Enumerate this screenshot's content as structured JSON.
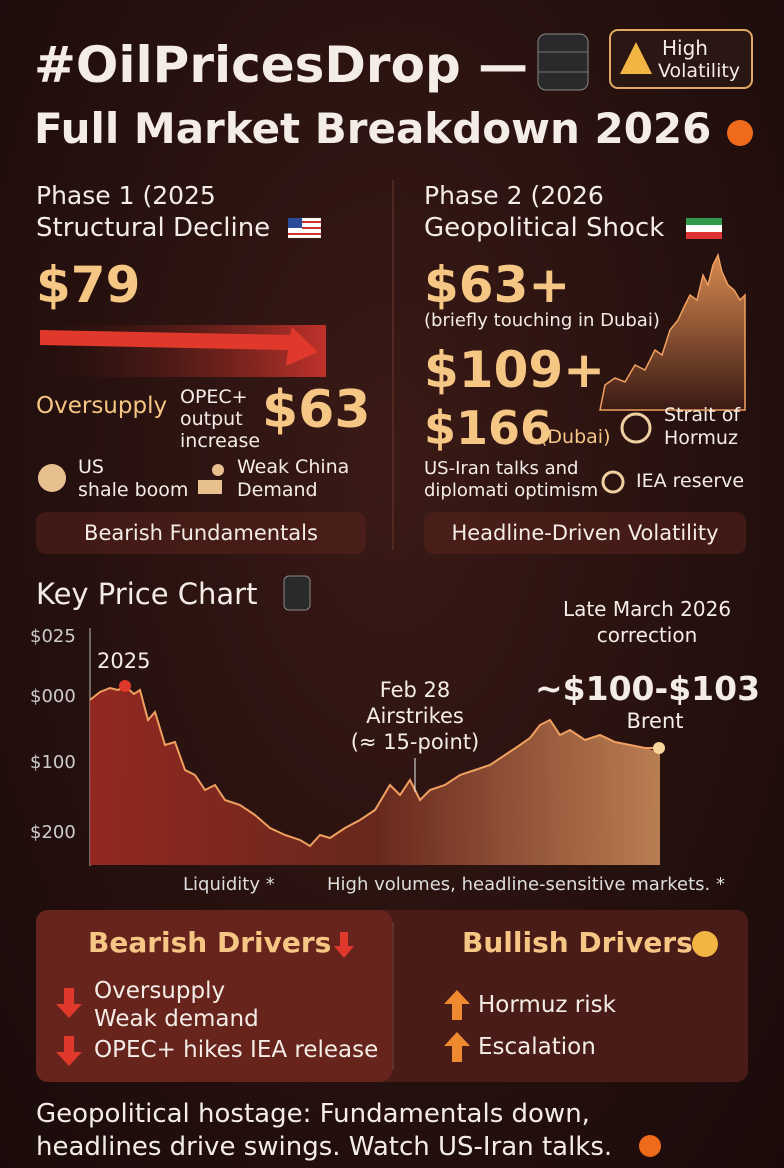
{
  "header": {
    "title": "#OilPricesDrop —",
    "badge": [
      "High",
      "Volatility"
    ],
    "subtitle": "Full Market Breakdown 2026"
  },
  "phase1": {
    "title": [
      "Phase 1 (2025",
      "Structural Decline"
    ],
    "price_start": "$79",
    "oversupply": "Oversupply",
    "opec": [
      "OPEC+",
      "output",
      "increase"
    ],
    "price_end": "$63",
    "factors": [
      [
        "US",
        "shale boom"
      ],
      [
        "Weak China",
        "Demand"
      ]
    ],
    "summary": "Bearish Fundamentals"
  },
  "phase2": {
    "title": [
      "Phase 2 (2026",
      "Geopolitical Shock"
    ],
    "price_1": "$63+",
    "note": "(briefly touching in Dubai)",
    "price_2": "$109+",
    "price_3": "$166",
    "price_3_note": "(Dubai)",
    "hormuz": [
      "Strait of",
      "Hormuz"
    ],
    "talks": [
      "US-Iran talks and",
      "diplomati optimism"
    ],
    "iea": "IEA reserve",
    "summary": "Headline-Driven Volatility"
  },
  "price_chart": {
    "title": "Key Price Chart",
    "y_labels": [
      "$025",
      "$000",
      "$100",
      "$200"
    ],
    "start_label": "2025",
    "airstrikes": [
      "Feb 28",
      "Airstrikes",
      "(≈ 15-point)"
    ],
    "correction": [
      "Late March 2026",
      "correction"
    ],
    "brent_range": "~$100-$103",
    "brent": "Brent",
    "footnotes": [
      "Liquidity *",
      "High volumes, headline-sensitive markets. *"
    ]
  },
  "drivers": {
    "bearish": {
      "title": "Bearish Drivers",
      "items": [
        [
          "Oversupply",
          "Weak demand"
        ],
        [
          "OPEC+ hikes IEA release"
        ]
      ]
    },
    "bullish": {
      "title": "Bullish Drivers",
      "items": [
        "Hormuz risk",
        "Escalation"
      ]
    }
  },
  "footer": [
    "Geopolitical hostage: Fundamentals down,",
    "headlines drive swings. Watch US-Iran talks."
  ]
}
